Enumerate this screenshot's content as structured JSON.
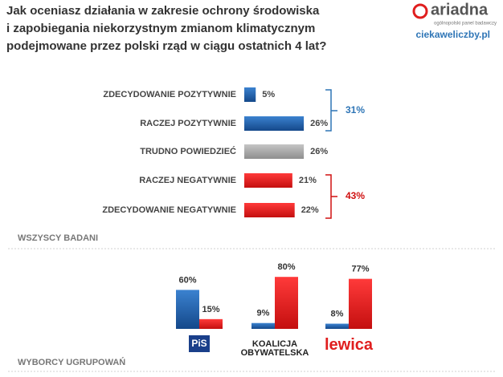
{
  "logo": {
    "name": "ariadna",
    "tagline": "ogólnopolski panel badawczy",
    "site": "ciekaweliczby.pl"
  },
  "chart_data": [
    {
      "type": "hbar",
      "title": [
        "Jak oceniasz działania w zakresie ochrony środowiska",
        "i zapobiegania niekorzystnym zmianom klimatycznym",
        "podejmowane przez polski rząd w ciągu ostatnich 4 lat?"
      ],
      "categories": [
        "ZDECYDOWANIE POZYTYWNIE",
        "RACZEJ POZYTYWNIE",
        "TRUDNO POWIEDZIEĆ",
        "RACZEJ NEGATYWNIE",
        "ZDECYDOWANIE NEGATYWNIE"
      ],
      "values": [
        5,
        26,
        26,
        21,
        22
      ],
      "value_labels": [
        "5%",
        "26%",
        "26%",
        "21%",
        "22%"
      ],
      "colors": [
        "#1f5fa8",
        "#1f5fa8",
        "#a6a6a6",
        "#e01e1e",
        "#e01e1e"
      ],
      "xlim": [
        0,
        100
      ],
      "annotations": [
        {
          "text": "31%",
          "color": "#2e75b6"
        },
        {
          "text": "43%",
          "color": "#d01010"
        }
      ],
      "section_label": "WSZYSCY BADANI"
    },
    {
      "type": "grouped_bar",
      "categories": [
        "PiS",
        "KOALICJA OBYWATELSKA",
        "lewica"
      ],
      "series": [
        {
          "color": "#1f5fa8",
          "values": [
            60,
            9,
            8
          ],
          "value_labels": [
            "60%",
            "9%",
            "8%"
          ]
        },
        {
          "color": "#e01e1e",
          "values": [
            15,
            80,
            77
          ],
          "value_labels": [
            "15%",
            "80%",
            "77%"
          ]
        }
      ],
      "ylim": [
        0,
        100
      ],
      "section_label": "WYBORCY UGRUPOWAŃ"
    }
  ]
}
